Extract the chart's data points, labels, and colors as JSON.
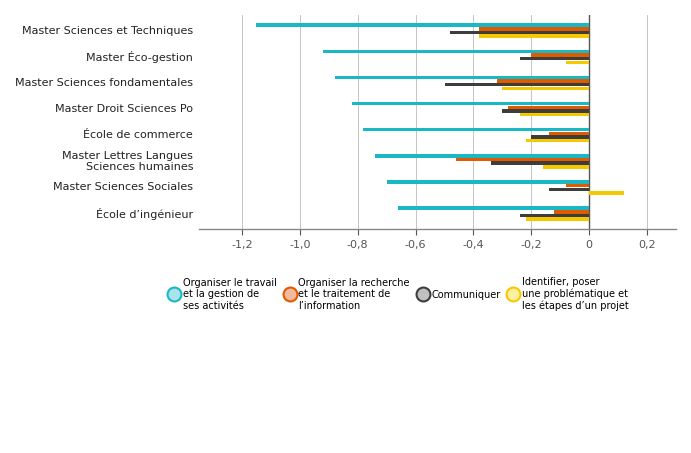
{
  "categories": [
    "Master Sciences et Techniques",
    "Master Éco-gestion",
    "Master Sciences fondamentales",
    "Master Droit Sciences Po",
    "École de commerce",
    "Master Lettres Langues\nSciences humaines",
    "Master Sciences Sociales",
    "École d’ingénieur"
  ],
  "series_names": [
    "Organiser le travail\net la gestion de\nses activités",
    "Organiser la recherche\net le traitement de\nl’information",
    "Communiquer",
    "Identifier, poser\nune problématique et\nles étapes d’un projet"
  ],
  "colors": [
    "#1ab8c4",
    "#e05a00",
    "#3d3d3d",
    "#f5c800"
  ],
  "values": [
    [
      -1.15,
      -0.92,
      -0.88,
      -0.82,
      -0.78,
      -0.74,
      -0.7,
      -0.66
    ],
    [
      -0.38,
      -0.2,
      -0.32,
      -0.28,
      -0.14,
      -0.46,
      -0.08,
      -0.12
    ],
    [
      -0.48,
      -0.24,
      -0.5,
      -0.3,
      -0.2,
      -0.34,
      -0.14,
      -0.24
    ],
    [
      -0.38,
      -0.08,
      -0.3,
      -0.24,
      -0.22,
      -0.16,
      0.12,
      -0.22
    ]
  ],
  "xlim": [
    -1.35,
    0.3
  ],
  "xticks": [
    -1.2,
    -1.0,
    -0.8,
    -0.6,
    -0.4,
    -0.2,
    0.0,
    0.2
  ],
  "xtick_labels": [
    "-1,2",
    "-1,0",
    "-0,8",
    "-0,6",
    "-0,4",
    "-0,2",
    "0",
    "0,2"
  ],
  "background_color": "#ffffff",
  "bar_height": 0.13,
  "legend_circle_colors": [
    "#a8e4e8",
    "#f4b89a",
    "#c0c0c0",
    "#fef0a0"
  ]
}
